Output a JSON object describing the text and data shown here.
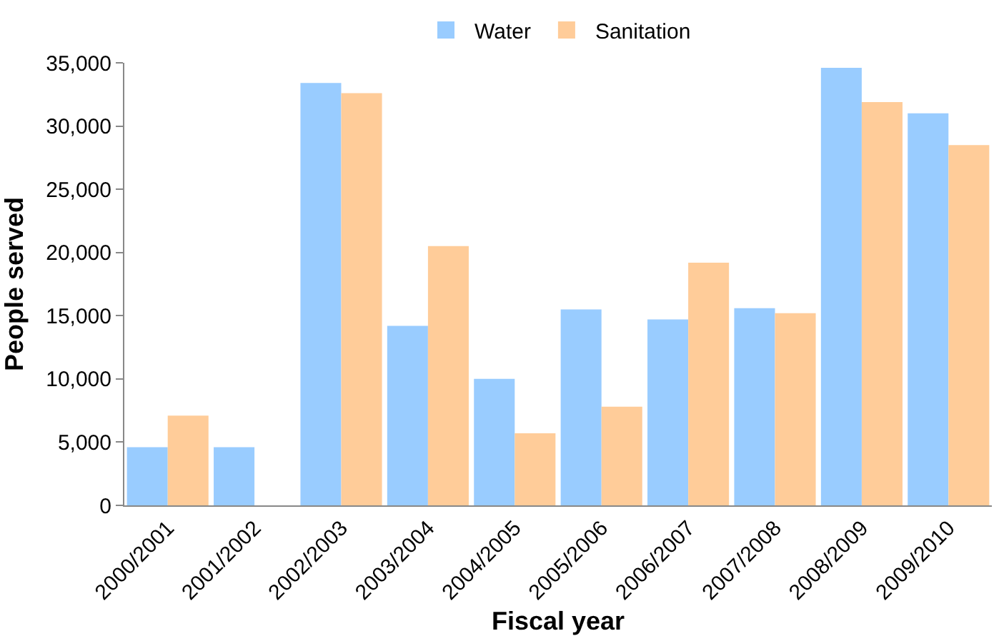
{
  "chart_data": {
    "type": "bar",
    "xlabel": "Fiscal year",
    "ylabel": "People served",
    "categories": [
      "2000/2001",
      "2001/2002",
      "2002/2003",
      "2003/2004",
      "2004/2005",
      "2005/2006",
      "2006/2007",
      "2007/2008",
      "2008/2009",
      "2009/2010"
    ],
    "series": [
      {
        "name": "Water",
        "color": "#99ccff",
        "values": [
          4600,
          4600,
          33400,
          14200,
          10000,
          15500,
          14700,
          15600,
          34600,
          31000
        ]
      },
      {
        "name": "Sanitation",
        "color": "#ffcc99",
        "values": [
          7100,
          0,
          32600,
          20500,
          5700,
          7800,
          19200,
          15200,
          31900,
          28500
        ]
      }
    ],
    "ylim": [
      0,
      35000
    ],
    "yticks": [
      {
        "value": 0,
        "label": "0"
      },
      {
        "value": 5000,
        "label": "5,000"
      },
      {
        "value": 10000,
        "label": "10,000"
      },
      {
        "value": 15000,
        "label": "15,000"
      },
      {
        "value": 20000,
        "label": "20,000"
      },
      {
        "value": 25000,
        "label": "25,000"
      },
      {
        "value": 30000,
        "label": "30,000"
      },
      {
        "value": 35000,
        "label": "35,000"
      }
    ],
    "grid": false,
    "legend": "top"
  }
}
